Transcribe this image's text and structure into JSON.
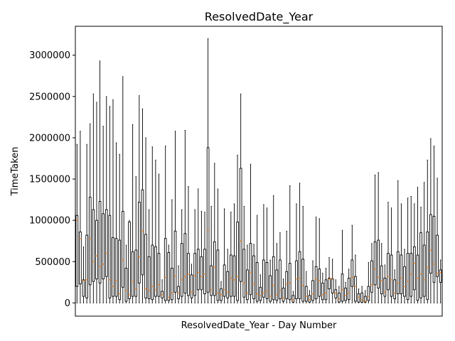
{
  "chart_data": {
    "type": "box",
    "title": "ResolvedDate_Year",
    "xlabel": "ResolvedDate_Year - Day Number",
    "ylabel": "TimeTaken",
    "ylim": [
      -160000,
      3350000
    ],
    "yticks": [
      0,
      500000,
      1000000,
      1500000,
      2000000,
      2500000,
      3000000
    ],
    "x_tick_labels_visible": false,
    "grid": false,
    "legend": "none",
    "colors": {
      "box": "#000000",
      "median": "#ff7f0e",
      "background": "#ffffff"
    },
    "series": [
      {
        "name": "",
        "whisker_high": [
          1920000,
          2080000,
          680000,
          1920000,
          2170000,
          2530000,
          2430000,
          2930000,
          2140000,
          2500000,
          2380000,
          2460000,
          1940000,
          1800000,
          2740000,
          700000,
          1000000,
          2160000,
          1530000,
          2510000,
          2350000,
          2000000,
          1130000,
          1890000,
          1730000,
          1560000,
          280000,
          1900000,
          700000,
          1250000,
          2080000,
          450000,
          1130000,
          2090000,
          1410000,
          470000,
          1130000,
          1380000,
          1110000,
          1100000,
          3200000,
          1170000,
          1690000,
          1380000,
          260000,
          1140000,
          650000,
          1100000,
          1200000,
          1790000,
          2530000,
          1170000,
          700000,
          1680000,
          710000,
          1060000,
          340000,
          1190000,
          1150000,
          520000,
          1300000,
          720000,
          850000,
          290000,
          870000,
          1420000,
          140000,
          1200000,
          1450000,
          1170000,
          380000,
          150000,
          510000,
          1040000,
          1020000,
          360000,
          420000,
          550000,
          530000,
          280000,
          200000,
          880000,
          250000,
          410000,
          940000,
          580000,
          170000,
          200000,
          150000,
          490000,
          720000,
          1550000,
          1580000,
          720000,
          460000,
          1220000,
          1150000,
          400000,
          1480000,
          1200000,
          650000,
          1270000,
          1290000,
          1200000,
          1400000,
          1160000,
          1460000,
          1730000,
          1990000,
          1900000,
          1510000,
          520000
        ],
        "q3": [
          1060000,
          860000,
          280000,
          820000,
          1280000,
          1130000,
          1000000,
          1230000,
          1080000,
          1130000,
          1060000,
          790000,
          780000,
          760000,
          1110000,
          420000,
          980000,
          620000,
          640000,
          1220000,
          1370000,
          830000,
          560000,
          700000,
          680000,
          600000,
          140000,
          780000,
          610000,
          420000,
          870000,
          200000,
          720000,
          840000,
          600000,
          340000,
          600000,
          650000,
          560000,
          650000,
          1880000,
          450000,
          740000,
          640000,
          170000,
          460000,
          380000,
          580000,
          570000,
          980000,
          1630000,
          650000,
          400000,
          720000,
          570000,
          490000,
          190000,
          520000,
          490000,
          330000,
          560000,
          400000,
          520000,
          180000,
          380000,
          480000,
          90000,
          510000,
          620000,
          530000,
          200000,
          90000,
          270000,
          440000,
          410000,
          240000,
          280000,
          300000,
          290000,
          160000,
          120000,
          350000,
          180000,
          300000,
          520000,
          320000,
          110000,
          120000,
          80000,
          200000,
          510000,
          740000,
          760000,
          450000,
          300000,
          600000,
          580000,
          280000,
          620000,
          580000,
          440000,
          600000,
          600000,
          680000,
          580000,
          850000,
          700000,
          860000,
          1070000,
          1050000,
          820000,
          400000
        ],
        "median": [
          1000000,
          780000,
          270000,
          280000,
          780000,
          500000,
          570000,
          440000,
          470000,
          600000,
          280000,
          200000,
          270000,
          110000,
          520000,
          150000,
          100000,
          260000,
          170000,
          560000,
          870000,
          170000,
          150000,
          200000,
          160000,
          220000,
          100000,
          310000,
          70000,
          120000,
          330000,
          120000,
          280000,
          320000,
          350000,
          130000,
          330000,
          370000,
          320000,
          350000,
          880000,
          160000,
          430000,
          120000,
          100000,
          160000,
          130000,
          300000,
          280000,
          320000,
          750000,
          240000,
          120000,
          370000,
          230000,
          110000,
          90000,
          120000,
          140000,
          80000,
          210000,
          100000,
          150000,
          60000,
          230000,
          240000,
          40000,
          290000,
          300000,
          210000,
          80000,
          40000,
          110000,
          290000,
          270000,
          100000,
          120000,
          290000,
          300000,
          120000,
          50000,
          160000,
          90000,
          120000,
          310000,
          200000,
          70000,
          40000,
          20000,
          80000,
          220000,
          410000,
          310000,
          270000,
          130000,
          320000,
          280000,
          120000,
          240000,
          300000,
          200000,
          260000,
          350000,
          480000,
          300000,
          350000,
          280000,
          430000,
          640000,
          470000,
          360000,
          370000
        ],
        "q1": [
          200000,
          230000,
          80000,
          60000,
          220000,
          260000,
          290000,
          240000,
          290000,
          320000,
          60000,
          80000,
          80000,
          40000,
          190000,
          20000,
          50000,
          80000,
          80000,
          240000,
          340000,
          60000,
          50000,
          40000,
          80000,
          80000,
          60000,
          30000,
          30000,
          40000,
          130000,
          50000,
          80000,
          120000,
          90000,
          60000,
          90000,
          160000,
          160000,
          110000,
          130000,
          90000,
          90000,
          30000,
          30000,
          80000,
          60000,
          80000,
          80000,
          30000,
          260000,
          70000,
          40000,
          100000,
          50000,
          20000,
          30000,
          70000,
          50000,
          20000,
          40000,
          30000,
          50000,
          20000,
          50000,
          40000,
          10000,
          50000,
          50000,
          20000,
          20000,
          10000,
          30000,
          50000,
          80000,
          40000,
          40000,
          170000,
          120000,
          60000,
          10000,
          20000,
          30000,
          40000,
          200000,
          20000,
          10000,
          10000,
          10000,
          30000,
          130000,
          220000,
          180000,
          110000,
          80000,
          160000,
          80000,
          50000,
          110000,
          110000,
          80000,
          40000,
          80000,
          160000,
          30000,
          60000,
          80000,
          40000,
          360000,
          250000,
          320000,
          250000
        ]
      }
    ]
  }
}
